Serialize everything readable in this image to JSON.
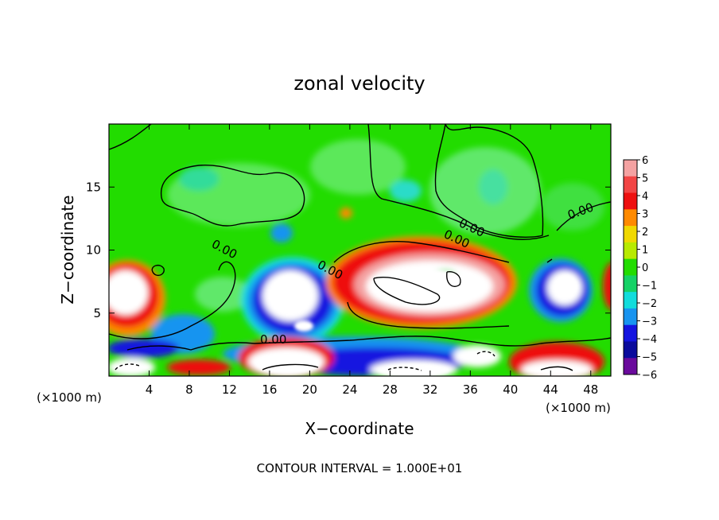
{
  "chart_data": {
    "type": "heatmap",
    "title": "zonal velocity",
    "xlabel": "X−coordinate",
    "ylabel": "Z−coordinate",
    "x_unit_left": "(×1000 m)",
    "x_unit_right": "(×1000 m)",
    "footer": "CONTOUR INTERVAL = 1.000E+01",
    "xlim": [
      0,
      50
    ],
    "ylim": [
      0,
      20
    ],
    "x_ticks": [
      4,
      8,
      12,
      16,
      20,
      24,
      28,
      32,
      36,
      40,
      44,
      48
    ],
    "x_tick_labels": [
      "4",
      "8",
      "12",
      "16",
      "20",
      "24",
      "28",
      "32",
      "36",
      "40",
      "44",
      "48"
    ],
    "y_ticks": [
      5,
      10,
      15
    ],
    "y_tick_labels": [
      "5",
      "10",
      "15"
    ],
    "colorbar": {
      "min": -6,
      "max": 6,
      "labels": [
        "6",
        "5",
        "4",
        "3",
        "2",
        "1",
        "0",
        "−1",
        "−2",
        "−3",
        "−4",
        "−5",
        "−6"
      ],
      "colors": [
        "#f4a2a2",
        "#f24545",
        "#ee1010",
        "#ff8a00",
        "#f0d800",
        "#b8ea00",
        "#22dc00",
        "#15d266",
        "#12dcdc",
        "#1894f0",
        "#1414e0",
        "#0b0b9c",
        "#6a0a9c"
      ]
    },
    "contour_labels": [
      "0.00",
      "0.00",
      "0.00",
      "0.00",
      "0.00",
      "0.00"
    ]
  }
}
